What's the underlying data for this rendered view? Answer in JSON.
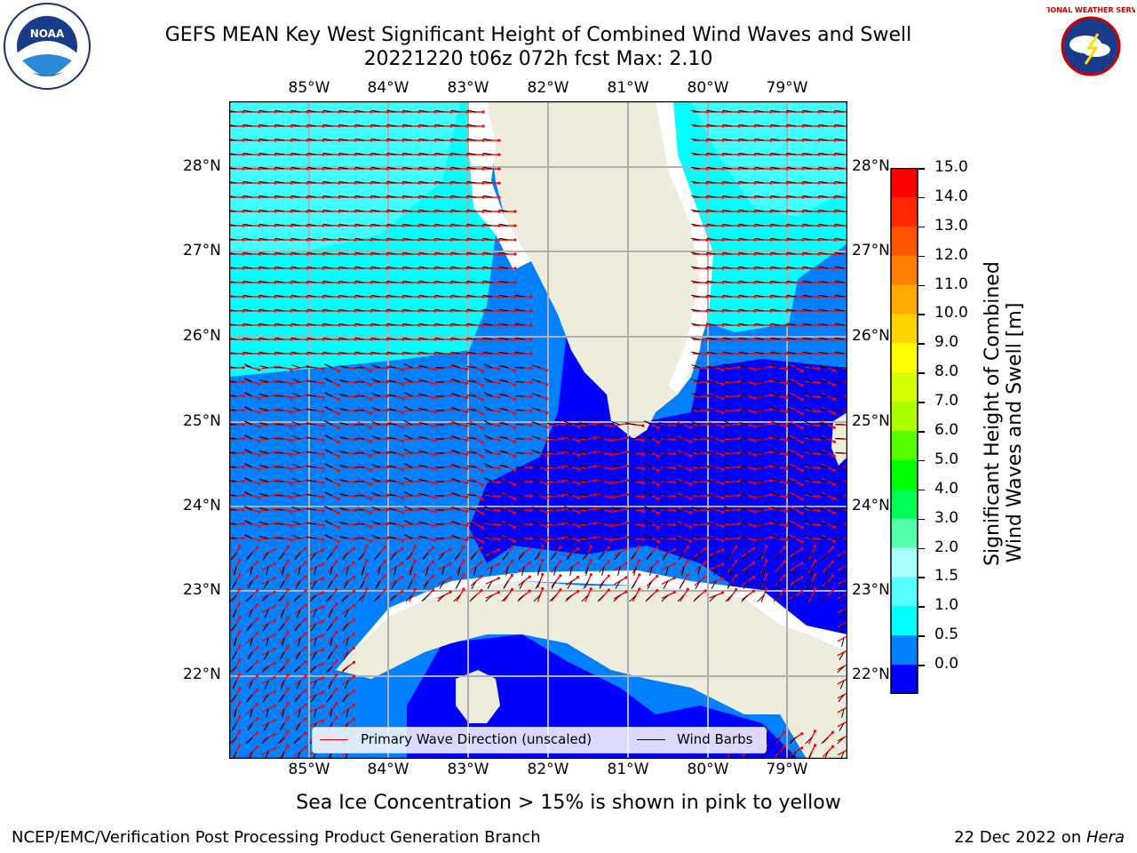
{
  "title_line1": "GEFS MEAN Key West Significant Height of Combined Wind Waves and Swell",
  "title_line2": "20221220 t06z 072h fcst   Max: 2.10",
  "map": {
    "lon_labels": [
      "85°W",
      "84°W",
      "83°W",
      "82°W",
      "81°W",
      "80°W",
      "79°W"
    ],
    "lat_labels": [
      "28°N",
      "27°N",
      "26°N",
      "25°N",
      "24°N",
      "23°N",
      "22°N"
    ],
    "colors": {
      "ocean_0_0.5": "#0000ff",
      "ocean_0.5_1.0": "#0080ff",
      "ocean_1.0_1.5": "#00ffff",
      "ocean_1.5_2.0": "#40ffff",
      "land": "#eeecdc",
      "primary_wave_arrow": "#ff0000",
      "wind_barb": "#000000",
      "gridline": "#b0b0b0"
    }
  },
  "legend": {
    "primary_wave": "Primary Wave Direction (unscaled)",
    "wind_barbs": "Wind Barbs"
  },
  "colorbar": {
    "label_line1": "Significant Height of Combined",
    "label_line2": "Wind Waves and Swell [m]",
    "ticks": [
      "15.0",
      "14.0",
      "13.0",
      "12.0",
      "11.0",
      "10.0",
      "9.0",
      "8.0",
      "7.0",
      "6.0",
      "5.0",
      "4.0",
      "3.0",
      "2.0",
      "1.5",
      "1.0",
      "0.5",
      "0.0"
    ],
    "colors": [
      "#ff0000",
      "#ff2a00",
      "#ff5500",
      "#ff7f00",
      "#ffaa00",
      "#ffd400",
      "#ffff00",
      "#d4ff00",
      "#aaff00",
      "#55ff00",
      "#00ff00",
      "#00ff55",
      "#55ffaa",
      "#aaffff",
      "#55ffff",
      "#00ffff",
      "#0080ff",
      "#0000ff"
    ]
  },
  "sea_ice_note": "Sea Ice Concentration > 15% is shown in pink to yellow",
  "footer_left": "NCEP/EMC/Verification Post Processing Product Generation Branch",
  "footer_right_prefix": "22 Dec 2022 on ",
  "footer_right_host": "Hera",
  "logos": {
    "noaa_text": "NOAA",
    "nws_text": "NATIONAL WEATHER SERVICE"
  }
}
